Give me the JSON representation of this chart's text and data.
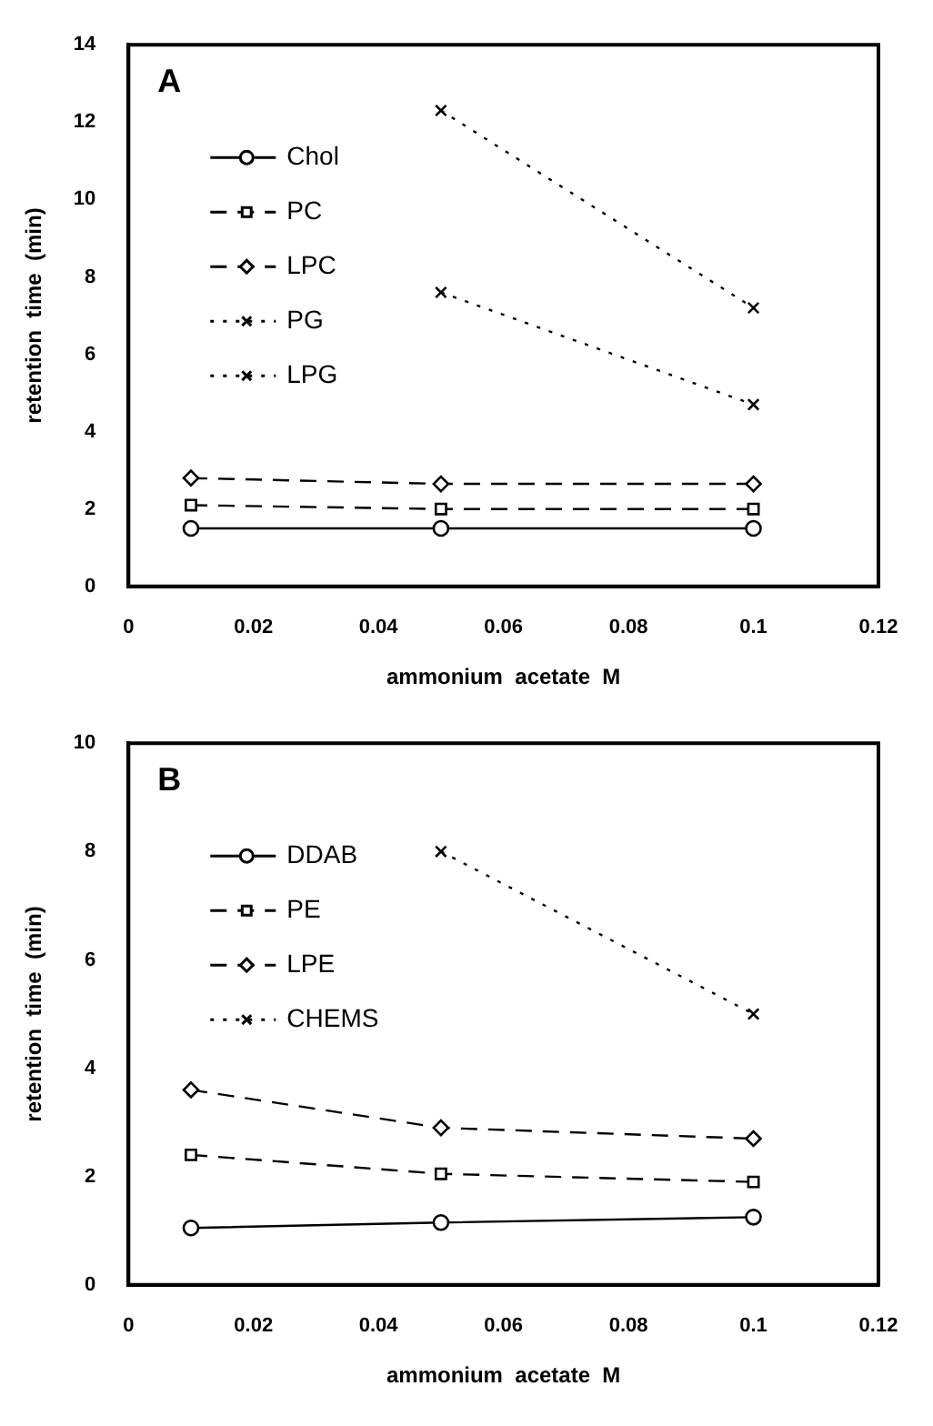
{
  "chart_data": [
    {
      "type": "line",
      "annotations": [
        "A"
      ],
      "xlabel": "ammonium  acetate  M",
      "ylabel": "retention  time  (min)",
      "xlim": [
        0,
        0.12
      ],
      "xticks": [
        0,
        0.02,
        0.04,
        0.06,
        0.08,
        0.1,
        0.12
      ],
      "ylim": [
        0,
        14
      ],
      "yticks": [
        0,
        2,
        4,
        6,
        8,
        10,
        12,
        14
      ],
      "grid": false,
      "legend": "top left",
      "series": [
        {
          "name": "Chol",
          "color": "#000000",
          "x": [
            0.01,
            0.05,
            0.1
          ],
          "values": [
            1.5,
            1.5,
            1.5
          ],
          "marker": "circle",
          "line_style": "solid"
        },
        {
          "name": "PC",
          "color": "#000000",
          "x": [
            0.01,
            0.05,
            0.1
          ],
          "values": [
            2.1,
            2.0,
            2.0
          ],
          "marker": "square",
          "line_style": "dashed"
        },
        {
          "name": "LPC",
          "color": "#000000",
          "x": [
            0.01,
            0.05,
            0.1
          ],
          "values": [
            2.8,
            2.65,
            2.65
          ],
          "marker": "diamond",
          "line_style": "dashed"
        },
        {
          "name": "PG",
          "color": "#000000",
          "x": [
            0.05,
            0.1
          ],
          "values": [
            7.6,
            4.7
          ],
          "marker": "cross",
          "line_style": "dotted"
        },
        {
          "name": "LPG",
          "color": "#000000",
          "x": [
            0.05,
            0.1
          ],
          "values": [
            12.3,
            7.2
          ],
          "marker": "cross",
          "line_style": "dotted"
        }
      ]
    },
    {
      "type": "line",
      "annotations": [
        "B"
      ],
      "xlabel": "ammonium  acetate  M",
      "ylabel": "retention  time  (min)",
      "xlim": [
        0,
        0.12
      ],
      "xticks": [
        0,
        0.02,
        0.04,
        0.06,
        0.08,
        0.1,
        0.12
      ],
      "ylim": [
        0,
        10
      ],
      "yticks": [
        0,
        2,
        4,
        6,
        8,
        10
      ],
      "grid": false,
      "legend": "top left",
      "series": [
        {
          "name": "DDAB",
          "color": "#000000",
          "x": [
            0.01,
            0.05,
            0.1
          ],
          "values": [
            1.05,
            1.15,
            1.25
          ],
          "marker": "circle",
          "line_style": "solid"
        },
        {
          "name": "PE",
          "color": "#000000",
          "x": [
            0.01,
            0.05,
            0.1
          ],
          "values": [
            2.4,
            2.05,
            1.9
          ],
          "marker": "square",
          "line_style": "dashed"
        },
        {
          "name": "LPE",
          "color": "#000000",
          "x": [
            0.01,
            0.05,
            0.1
          ],
          "values": [
            3.6,
            2.9,
            2.7
          ],
          "marker": "diamond",
          "line_style": "dashed"
        },
        {
          "name": "CHEMS",
          "color": "#000000",
          "x": [
            0.05,
            0.1
          ],
          "values": [
            8.0,
            5.0
          ],
          "marker": "cross",
          "line_style": "dotted"
        }
      ]
    }
  ]
}
